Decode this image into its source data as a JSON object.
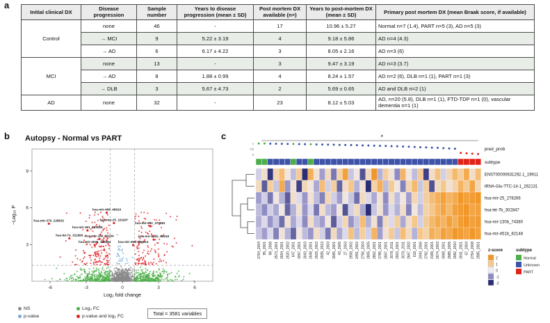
{
  "panels": {
    "a": "a",
    "b": "b",
    "c": "c"
  },
  "clinical_table": {
    "headers": [
      "Initial clinical DX",
      "Disease progression",
      "Sample number",
      "Years to disease progression (mean ± SD)",
      "Post mortem DX available (n=)",
      "Years to post-mortem DX (mean ± SD)",
      "Primary post mortem DX (mean Braak score, if available)"
    ],
    "groups": [
      {
        "dx": "Control",
        "rows": [
          {
            "progression": "none",
            "sample_n": "46",
            "years_prog": "-",
            "pm_available": "17",
            "years_pm": "10.96 ± 5.27",
            "primary": "Normal n=7 (1.4), PART n=5 (3), AD n=5 (3)"
          },
          {
            "progression": "→ MCI",
            "sample_n": "9",
            "years_prog": "5.22 ± 3.19",
            "pm_available": "4",
            "years_pm": "9.18 ± 5.86",
            "primary": "AD n=4 (4.3)"
          },
          {
            "progression": "→ AD",
            "sample_n": "6",
            "years_prog": "6.17 ± 4.22",
            "pm_available": "3",
            "years_pm": "8.05 ± 2.16",
            "primary": "AD n=3 (6)"
          }
        ]
      },
      {
        "dx": "MCI",
        "rows": [
          {
            "progression": "none",
            "sample_n": "13",
            "years_prog": "-",
            "pm_available": "3",
            "years_pm": "9.47 ± 3.19",
            "primary": "AD n=3 (3.7)"
          },
          {
            "progression": "→ AD",
            "sample_n": "8",
            "years_prog": "1.88 ± 0.99",
            "pm_available": "4",
            "years_pm": "8.24 ± 1.57",
            "primary": "AD n=2 (6), DLB n=1 (1), PART n=1 (3)"
          },
          {
            "progression": "→ DLB",
            "sample_n": "3",
            "years_prog": "5.67 ± 4.73",
            "pm_available": "2",
            "years_pm": "5.69 ± 0.65",
            "primary": "AD and DLB n=2 (1)"
          }
        ]
      },
      {
        "dx": "AD",
        "rows": [
          {
            "progression": "none",
            "sample_n": "32",
            "years_prog": "-",
            "pm_available": "23",
            "years_pm": "8.12 ± 5.03",
            "primary": "AD, n=20 (5.8), DLB n=1 (1), FTD-TDP n=1 (0), vascular dementia n=1 (1)"
          }
        ]
      }
    ]
  },
  "chart_data": [
    {
      "type": "scatter",
      "name": "volcano",
      "title": "Autopsy - Normal vs PART",
      "xlabel": "Log₂ fold change",
      "ylabel": "−Log₁₀ P",
      "xlim": [
        -7.5,
        7.5
      ],
      "ylim": [
        0,
        10.8
      ],
      "xticks": [
        -6,
        -3,
        0,
        3,
        6
      ],
      "yticks": [
        3,
        6,
        9
      ],
      "fc_threshold_lines": [
        -1,
        1
      ],
      "p_threshold_line": 1.3,
      "legend": [
        {
          "label": "NS",
          "color": "#8a8a8a"
        },
        {
          "label": "Log₂ FC",
          "color": "#4daf4a"
        },
        {
          "label": "p-value",
          "color": "#74a9d8"
        },
        {
          "label": "p-value and log₂ FC",
          "color": "#e0242a"
        }
      ],
      "total_label": "Total = 3581 variables",
      "labeled_points": [
        {
          "name": "hsa-mir-484_49919",
          "x": -1.3,
          "y": 5.6
        },
        {
          "name": "hsa-mir-379_228632",
          "x": -6.1,
          "y": 4.7
        },
        {
          "name": "hsa-mir-361_153085",
          "x": -2.9,
          "y": 4.15
        },
        {
          "name": "hsa-mir-25_16193*",
          "x": -0.7,
          "y": 4.75
        },
        {
          "name": "hsa-mir-932_375881",
          "x": 2.3,
          "y": 4.5
        },
        {
          "name": "hsa-let-7e_311990",
          "x": -4.4,
          "y": 3.5
        },
        {
          "name": "hsa-mir-186_39204",
          "x": -1.9,
          "y": 3.45
        },
        {
          "name": "hsa-mir-451b_95918",
          "x": 2.6,
          "y": 3.4
        },
        {
          "name": "hsa-mir-4536_185694",
          "x": -2.3,
          "y": 2.95
        },
        {
          "name": "hsa-mir-365_155614",
          "x": 0.9,
          "y": 2.95
        }
      ],
      "cloud": {
        "seed": 7,
        "n_ns": 550,
        "n_fc": 620,
        "n_p": 28,
        "n_both": 300
      }
    },
    {
      "type": "heatmap",
      "name": "autopsy-heatmap",
      "significance": "*",
      "pred_prob_label": "pred_prob",
      "subtype_label": "subtype",
      "pred_prob_ticks": [
        "1",
        "0.5",
        "0"
      ],
      "row_labels": [
        "ENST00000631292.1_19911",
        "tRNA-Glu-TTC-14-1_262131",
        "hsa-mir-25_278266",
        "hsa-let-7b_302847",
        "hsa-mir-130b_74380",
        "hsa-mir-451b_82148"
      ],
      "col_labels": [
        "2764_2004",
        "95_2001",
        "98_2008",
        "2573_2001",
        "2664_2001",
        "2620_2002",
        "647_2001",
        "3057_2001",
        "3043_2003",
        "2648_2001",
        "2929_2003",
        "2935_2013",
        "42_2003",
        "3065_2001",
        "43_2005",
        "27_2003",
        "2658_2002",
        "2491_2002",
        "2756_2004",
        "2805_2005",
        "2862_2001",
        "2789_2001",
        "2667_2001",
        "3079_2011",
        "2663_2001",
        "3070_2011",
        "2667_2002",
        "618_2001",
        "2440_2006",
        "2782_2001",
        "3199_2001",
        "2674_2003",
        "3068_2001",
        "2988_2005",
        "3082_2010",
        "3041_2001",
        "67_2004",
        "2754_2008",
        "2985_2001"
      ],
      "subtype": [
        "Normal",
        "Normal",
        "Unknown",
        "Unknown",
        "Unknown",
        "Unknown",
        "Normal",
        "Unknown",
        "Unknown",
        "Normal",
        "Unknown",
        "Unknown",
        "Unknown",
        "Unknown",
        "Unknown",
        "Unknown",
        "Unknown",
        "Unknown",
        "Unknown",
        "Unknown",
        "Unknown",
        "Unknown",
        "Unknown",
        "Unknown",
        "Unknown",
        "Unknown",
        "Unknown",
        "Unknown",
        "Unknown",
        "Unknown",
        "Unknown",
        "Unknown",
        "Unknown",
        "Unknown",
        "Unknown",
        "PART",
        "PART",
        "PART",
        "PART"
      ],
      "pred_prob": [
        0.99,
        0.99,
        0.98,
        0.97,
        0.96,
        0.95,
        0.95,
        0.94,
        0.93,
        0.92,
        0.91,
        0.9,
        0.89,
        0.88,
        0.87,
        0.86,
        0.85,
        0.84,
        0.82,
        0.81,
        0.8,
        0.78,
        0.77,
        0.75,
        0.74,
        0.72,
        0.7,
        0.68,
        0.66,
        0.64,
        0.62,
        0.6,
        0.57,
        0.55,
        0.52,
        0.15,
        0.11,
        0.08,
        0.05
      ],
      "values": [
        [
          -0.3,
          0.4,
          -1.9,
          0.6,
          1.2,
          0.2,
          -0.5,
          0.9,
          -2.0,
          1.5,
          0.3,
          -0.8,
          0.5,
          -1.2,
          0.7,
          1.8,
          -0.4,
          0.2,
          -1.6,
          0.5,
          2.0,
          -0.6,
          0.8,
          0.3,
          -1.0,
          1.4,
          0.2,
          -0.5,
          0.9,
          -1.8,
          0.4,
          1.1,
          -0.3,
          0.6,
          1.3,
          0.8,
          1.6,
          0.4,
          1.2
        ],
        [
          0.5,
          -1.5,
          0.8,
          -0.4,
          1.6,
          -0.9,
          0.3,
          -1.8,
          0.6,
          0.2,
          -0.7,
          1.2,
          -0.3,
          0.8,
          -1.4,
          0.4,
          1.0,
          -0.6,
          0.3,
          -2.0,
          0.7,
          1.5,
          -0.5,
          0.9,
          0.2,
          -1.1,
          0.6,
          1.3,
          -0.4,
          0.8,
          -1.6,
          0.5,
          1.0,
          0.3,
          0.7,
          1.4,
          0.9,
          1.7,
          0.6
        ],
        [
          -0.8,
          -0.3,
          -1.2,
          0.2,
          -0.6,
          -1.5,
          0.4,
          -0.2,
          -0.9,
          0.3,
          -0.5,
          -1.1,
          0.6,
          -0.3,
          -0.8,
          0.2,
          -0.4,
          -1.3,
          0.5,
          -0.2,
          -0.7,
          0.3,
          -1.0,
          0.4,
          -0.5,
          0.2,
          -0.8,
          0.6,
          -0.3,
          0.8,
          1.2,
          1.5,
          1.8,
          1.4,
          1.6,
          2.0,
          1.8,
          1.9,
          2.0
        ],
        [
          -0.5,
          -1.0,
          -0.3,
          -0.7,
          0.2,
          -1.4,
          -0.6,
          0.3,
          -0.9,
          -0.2,
          -1.2,
          0.4,
          -0.5,
          -0.8,
          0.2,
          -1.6,
          -0.3,
          0.5,
          -0.7,
          -2.0,
          -0.4,
          0.3,
          -0.9,
          -0.2,
          -0.6,
          0.4,
          -1.1,
          0.2,
          -0.5,
          0.7,
          1.0,
          1.4,
          1.7,
          1.3,
          1.8,
          1.9,
          2.0,
          1.7,
          1.8
        ],
        [
          -0.6,
          -0.2,
          -0.9,
          -0.4,
          -1.3,
          0.3,
          -0.7,
          -0.2,
          -1.0,
          0.4,
          -0.5,
          -0.8,
          0.2,
          -1.5,
          -0.3,
          0.6,
          -0.9,
          -0.4,
          1.2,
          -0.6,
          0.3,
          -1.1,
          0.5,
          -0.2,
          0.8,
          -0.7,
          0.4,
          1.0,
          -0.3,
          0.9,
          1.3,
          1.6,
          1.4,
          1.8,
          1.5,
          1.9,
          2.0,
          1.8,
          1.9
        ],
        [
          -0.4,
          -0.8,
          -0.2,
          -1.1,
          0.3,
          -0.6,
          -1.4,
          0.2,
          -0.5,
          -0.9,
          0.4,
          -0.3,
          -1.2,
          0.5,
          -0.7,
          -0.2,
          1.1,
          -0.5,
          0.8,
          -0.3,
          1.4,
          -0.8,
          0.3,
          0.9,
          -0.4,
          1.2,
          0.5,
          -0.6,
          1.0,
          0.7,
          1.5,
          1.3,
          1.8,
          1.6,
          2.0,
          1.9,
          1.7,
          2.0,
          1.8
        ]
      ],
      "zscore_legend": {
        "title": "z-score",
        "ticks": [
          2,
          1,
          0,
          -1,
          -2
        ]
      },
      "subtype_legend": {
        "title": "subtype",
        "items": [
          {
            "label": "Normal",
            "color": "#4daf4a"
          },
          {
            "label": "Unknown",
            "color": "#3d52a8"
          },
          {
            "label": "PART",
            "color": "#e2231a"
          }
        ]
      },
      "palette": {
        "neg2": "#2b2d75",
        "neg1": "#8e8bc3",
        "zero": "#eeecf4",
        "pos1": "#f6c78a",
        "pos2": "#f29727"
      }
    }
  ]
}
